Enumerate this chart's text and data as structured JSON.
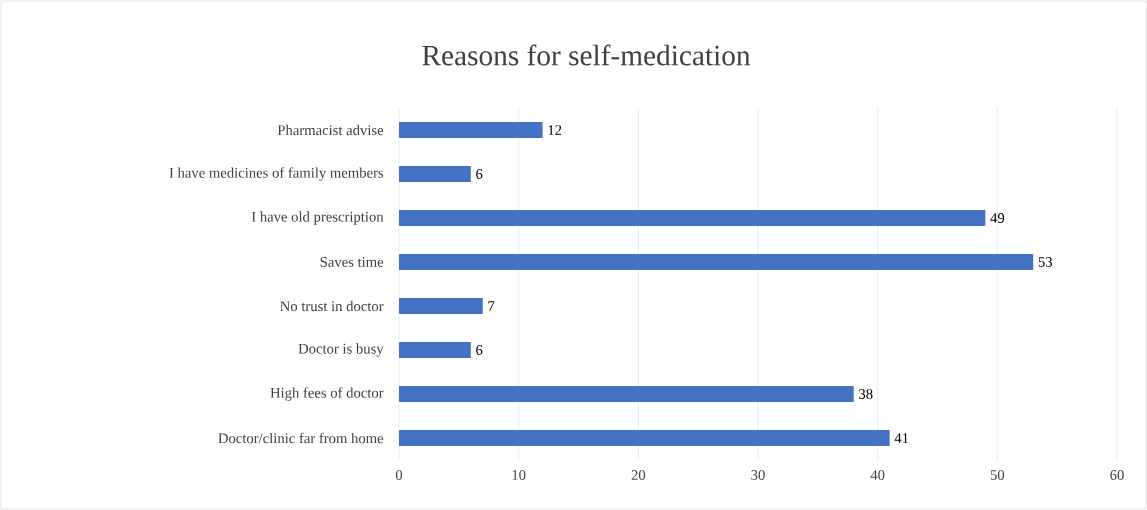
{
  "chart_data": {
    "type": "bar",
    "title": "Reasons for self-medication",
    "orientation": "horizontal",
    "categories": [
      "Pharmacist advise",
      "I have medicines of family members",
      "I have old prescription",
      "Saves time",
      "No trust in doctor",
      "Doctor is busy",
      "High fees of doctor",
      "Doctor/clinic far from home"
    ],
    "values": [
      12,
      6,
      49,
      53,
      7,
      6,
      38,
      41
    ],
    "color": "#4472c4",
    "xlim": [
      0,
      60
    ],
    "xticks": [
      0,
      10,
      20,
      30,
      40,
      50,
      60
    ],
    "grid": "x",
    "data_labels": true
  }
}
